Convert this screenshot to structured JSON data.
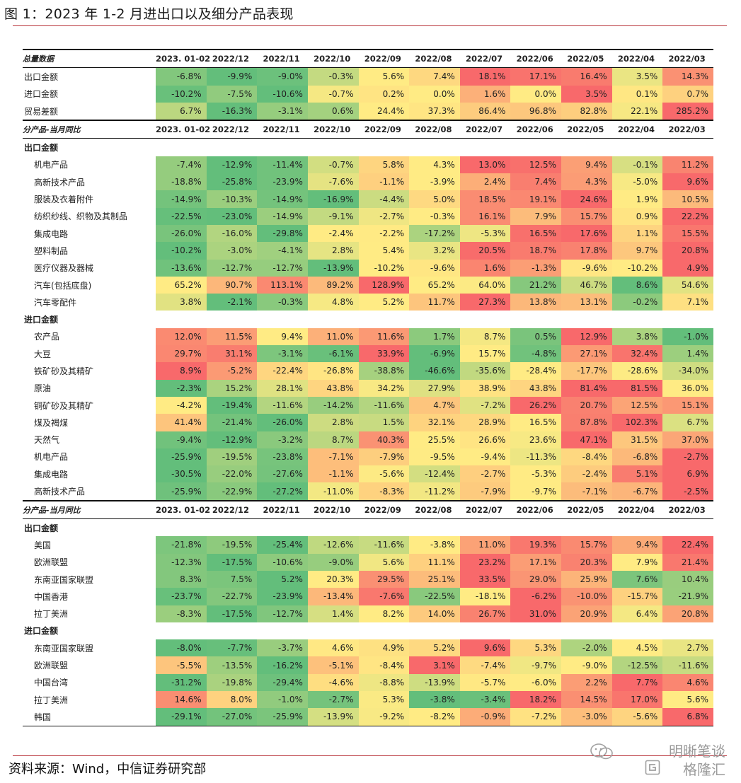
{
  "figure": {
    "title": "图 1：2023 年 1-2 月进出口以及细分产品表现",
    "source": "资料来源：Wind，中信证券研究部",
    "watermark_line1": "明晰笔谈",
    "watermark_line2": "格隆汇"
  },
  "colors": {
    "low": "#63be7b",
    "mid": "#ffeb84",
    "high": "#f8696b"
  },
  "chart_data": {
    "type": "table",
    "columns": [
      "2023. 01-02",
      "2022/12",
      "2022/11",
      "2022/10",
      "2022/09",
      "2022/08",
      "2022/07",
      "2022/06",
      "2022/05",
      "2022/04",
      "2022/03"
    ],
    "blocks": [
      {
        "header": "总量数据",
        "groups": [
          {
            "section": "",
            "rows": [
              {
                "label": "出口金额",
                "values": [
                  -6.8,
                  -9.9,
                  -9.0,
                  -0.3,
                  5.6,
                  7.4,
                  18.1,
                  17.1,
                  16.4,
                  3.5,
                  14.3
                ]
              },
              {
                "label": "进口金额",
                "values": [
                  -10.2,
                  -7.5,
                  -10.6,
                  -0.7,
                  0.2,
                  0.0,
                  1.6,
                  0.0,
                  3.5,
                  0.1,
                  0.7
                ]
              },
              {
                "label": "贸易差额",
                "values": [
                  6.7,
                  -16.3,
                  -3.1,
                  0.6,
                  24.4,
                  37.3,
                  86.4,
                  96.8,
                  82.8,
                  22.1,
                  285.2
                ]
              }
            ]
          }
        ]
      },
      {
        "header": "分产品-当月同比",
        "groups": [
          {
            "section": "出口金额",
            "rows": [
              {
                "label": "机电产品",
                "values": [
                  -7.4,
                  -12.9,
                  -11.4,
                  -0.7,
                  5.8,
                  4.3,
                  13.0,
                  12.5,
                  9.4,
                  -0.1,
                  11.2
                ]
              },
              {
                "label": "高新技术产品",
                "values": [
                  -18.8,
                  -25.8,
                  -23.9,
                  -7.6,
                  -1.1,
                  -3.9,
                  2.4,
                  7.4,
                  4.3,
                  -5.0,
                  9.6
                ]
              },
              {
                "label": "服装及衣着附件",
                "values": [
                  -14.9,
                  -10.3,
                  -14.9,
                  -16.9,
                  -4.4,
                  5.0,
                  18.5,
                  19.1,
                  24.6,
                  1.9,
                  10.5
                ]
              },
              {
                "label": "纺织纱线、织物及其制品",
                "values": [
                  -22.5,
                  -23.0,
                  -14.9,
                  -9.1,
                  -2.7,
                  -0.3,
                  16.1,
                  7.9,
                  15.7,
                  0.9,
                  22.2
                ]
              },
              {
                "label": "集成电路",
                "values": [
                  -26.0,
                  -16.0,
                  -29.8,
                  -2.4,
                  -2.2,
                  -17.2,
                  -5.3,
                  16.5,
                  17.6,
                  1.1,
                  15.5
                ]
              },
              {
                "label": "塑料制品",
                "values": [
                  -10.2,
                  -3.0,
                  -4.1,
                  2.8,
                  5.4,
                  3.2,
                  20.5,
                  18.7,
                  17.8,
                  9.7,
                  20.8
                ]
              },
              {
                "label": "医疗仪器及器械",
                "values": [
                  -13.6,
                  -12.7,
                  -12.7,
                  -13.9,
                  -10.2,
                  -9.6,
                  1.6,
                  -1.3,
                  -9.6,
                  -10.2,
                  4.9
                ]
              },
              {
                "label": "汽车(包括底盘)",
                "values": [
                  65.2,
                  90.7,
                  113.1,
                  89.2,
                  128.9,
                  65.2,
                  64.0,
                  21.2,
                  46.7,
                  8.6,
                  54.6
                ]
              },
              {
                "label": "汽车零配件",
                "values": [
                  3.8,
                  -2.1,
                  -0.3,
                  4.8,
                  5.2,
                  11.7,
                  27.3,
                  13.8,
                  13.1,
                  -0.2,
                  7.1
                ]
              }
            ]
          },
          {
            "section": "进口金额",
            "rows": [
              {
                "label": "农产品",
                "values": [
                  12.0,
                  11.5,
                  9.4,
                  11.0,
                  11.6,
                  1.7,
                  8.7,
                  0.5,
                  12.9,
                  3.8,
                  -1.0
                ]
              },
              {
                "label": "大豆",
                "values": [
                  29.7,
                  31.1,
                  -3.1,
                  -6.1,
                  33.9,
                  -6.9,
                  15.7,
                  -4.8,
                  27.1,
                  32.4,
                  1.4
                ]
              },
              {
                "label": "铁矿砂及其精矿",
                "values": [
                  8.9,
                  -5.2,
                  -22.4,
                  -26.8,
                  -38.8,
                  -46.6,
                  -35.6,
                  -28.4,
                  -17.7,
                  -28.6,
                  -34.0
                ]
              },
              {
                "label": "原油",
                "values": [
                  -2.3,
                  15.2,
                  28.1,
                  43.8,
                  34.2,
                  27.9,
                  38.9,
                  43.8,
                  81.4,
                  81.5,
                  36.0
                ]
              },
              {
                "label": "铜矿砂及其精矿",
                "values": [
                  -4.2,
                  -19.4,
                  -11.6,
                  -14.2,
                  -11.6,
                  4.7,
                  -7.2,
                  26.2,
                  20.7,
                  12.5,
                  15.1
                ]
              },
              {
                "label": "煤及褐煤",
                "values": [
                  41.4,
                  -21.4,
                  -26.0,
                  2.8,
                  1.5,
                  32.1,
                  28.9,
                  16.5,
                  87.8,
                  102.3,
                  6.7
                ]
              },
              {
                "label": "天然气",
                "values": [
                  -9.4,
                  -12.9,
                  -3.2,
                  8.7,
                  40.3,
                  25.5,
                  26.6,
                  23.6,
                  47.1,
                  31.5,
                  37.0
                ]
              },
              {
                "label": "机电产品",
                "values": [
                  -25.9,
                  -19.5,
                  -23.8,
                  -7.1,
                  -7.9,
                  -9.5,
                  -9.4,
                  -11.3,
                  -8.4,
                  -6.8,
                  -2.7
                ]
              },
              {
                "label": "集成电路",
                "values": [
                  -30.5,
                  -22.0,
                  -27.6,
                  -1.1,
                  -5.6,
                  -12.4,
                  -2.7,
                  -5.3,
                  -2.4,
                  5.1,
                  6.9
                ]
              },
              {
                "label": "高新技术产品",
                "values": [
                  -25.9,
                  -22.9,
                  -27.2,
                  -11.0,
                  -8.3,
                  -11.2,
                  -7.9,
                  -9.7,
                  -7.1,
                  -6.7,
                  -2.5
                ]
              }
            ]
          }
        ]
      },
      {
        "header": "分产品-当月同比",
        "groups": [
          {
            "section": "出口金额",
            "rows": [
              {
                "label": "美国",
                "values": [
                  -21.8,
                  -19.5,
                  -25.4,
                  -12.6,
                  -11.6,
                  -3.8,
                  11.0,
                  19.3,
                  15.7,
                  9.4,
                  22.4
                ]
              },
              {
                "label": "欧洲联盟",
                "values": [
                  -12.3,
                  -17.5,
                  -10.6,
                  -9.0,
                  5.6,
                  11.1,
                  23.2,
                  17.1,
                  20.3,
                  7.9,
                  21.4
                ]
              },
              {
                "label": "东南亚国家联盟",
                "values": [
                  8.3,
                  7.5,
                  5.2,
                  20.3,
                  29.5,
                  25.1,
                  33.5,
                  29.0,
                  25.9,
                  7.6,
                  10.4
                ]
              },
              {
                "label": "中国香港",
                "values": [
                  -23.7,
                  -22.7,
                  -23.9,
                  -13.4,
                  -7.6,
                  -22.5,
                  -18.1,
                  -6.2,
                  -10.0,
                  -15.7,
                  -21.9
                ]
              },
              {
                "label": "拉丁美洲",
                "values": [
                  -8.3,
                  -17.5,
                  -12.7,
                  1.4,
                  8.2,
                  14.0,
                  26.7,
                  31.0,
                  20.9,
                  6.4,
                  20.8
                ]
              }
            ]
          },
          {
            "section": "进口金额",
            "rows": [
              {
                "label": "东南亚国家联盟",
                "values": [
                  -8.0,
                  -7.7,
                  -3.7,
                  4.6,
                  4.9,
                  5.2,
                  9.6,
                  5.3,
                  -2.0,
                  4.5,
                  2.7
                ]
              },
              {
                "label": "欧洲联盟",
                "values": [
                  -5.5,
                  -13.5,
                  -16.2,
                  -5.1,
                  -8.4,
                  3.1,
                  -7.4,
                  -9.7,
                  -9.0,
                  -12.5,
                  -11.6
                ]
              },
              {
                "label": "中国台湾",
                "values": [
                  -31.2,
                  -19.8,
                  -29.4,
                  -4.6,
                  -8.8,
                  -13.9,
                  -5.7,
                  -6.0,
                  2.2,
                  7.7,
                  4.6
                ]
              },
              {
                "label": "拉丁美洲",
                "values": [
                  14.6,
                  8.0,
                  -1.0,
                  -2.7,
                  5.3,
                  -3.8,
                  -3.4,
                  18.2,
                  14.5,
                  17.0,
                  5.6
                ]
              },
              {
                "label": "韩国",
                "values": [
                  -29.1,
                  -27.0,
                  -25.9,
                  -13.9,
                  -9.2,
                  -8.2,
                  -0.9,
                  -7.2,
                  -3.0,
                  -5.6,
                  6.8
                ]
              }
            ]
          }
        ]
      }
    ]
  }
}
